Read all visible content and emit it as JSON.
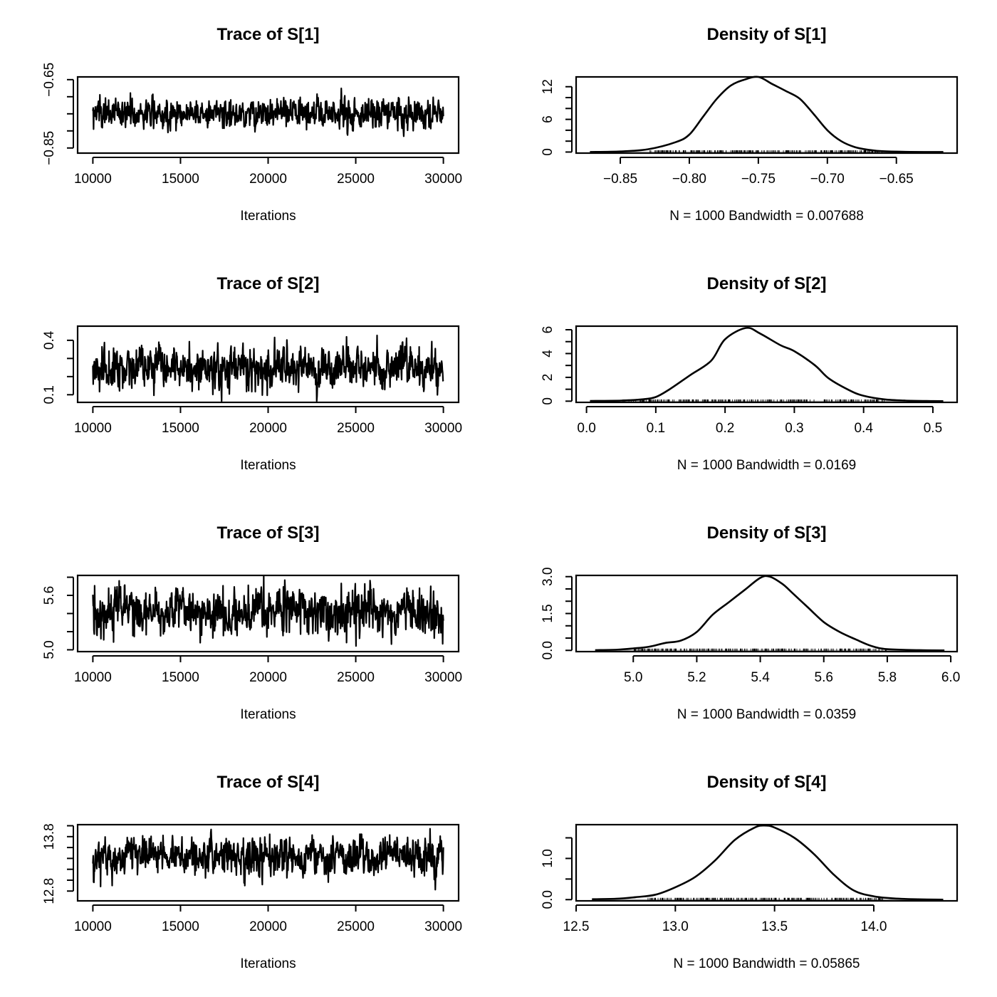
{
  "chart_data": [
    {
      "type": "line",
      "kind": "trace",
      "title": "Trace of S[1]",
      "xlabel": "Iterations",
      "xlim": [
        10000,
        30000
      ],
      "ylim": [
        -0.865,
        -0.642
      ],
      "xticks": [
        10000,
        15000,
        20000,
        25000,
        30000
      ],
      "yticks": [
        -0.85,
        -0.8,
        -0.75,
        -0.7,
        -0.65
      ],
      "ytick_labels": [
        "−0.85",
        "",
        "",
        "",
        "−0.65"
      ],
      "series": [
        {
          "mean": -0.748,
          "sd": 0.022,
          "min": -0.857,
          "max": -0.655,
          "n": 1000
        }
      ]
    },
    {
      "type": "line",
      "kind": "density",
      "title": "Density of S[1]",
      "xlabel": "N = 1000   Bandwidth = 0.007688",
      "xlim": [
        -0.882,
        -0.606
      ],
      "ylim": [
        -0.2,
        13.8
      ],
      "xticks": [
        -0.85,
        -0.8,
        -0.75,
        -0.7,
        -0.65
      ],
      "xtick_labels": [
        "−0.85",
        "−0.80",
        "−0.75",
        "−0.70",
        "−0.65"
      ],
      "yticks": [
        0,
        2,
        4,
        6,
        8,
        10,
        12
      ],
      "ytick_labels": [
        "0",
        "",
        "",
        "6",
        "",
        "",
        "12"
      ],
      "density": {
        "x": [
          -0.872,
          -0.85,
          -0.83,
          -0.81,
          -0.8,
          -0.79,
          -0.78,
          -0.77,
          -0.76,
          -0.75,
          -0.74,
          -0.73,
          -0.72,
          -0.71,
          -0.7,
          -0.69,
          -0.68,
          -0.67,
          -0.66,
          -0.64,
          -0.616
        ],
        "y": [
          0.01,
          0.1,
          0.5,
          1.8,
          3.2,
          6.5,
          9.8,
          12.2,
          13.3,
          13.8,
          12.5,
          11.2,
          9.8,
          7.0,
          4.0,
          2.0,
          0.9,
          0.4,
          0.15,
          0.03,
          0.0
        ]
      },
      "rug_range": [
        -0.83,
        -0.66
      ]
    },
    {
      "type": "line",
      "kind": "trace",
      "title": "Trace of S[2]",
      "xlabel": "Iterations",
      "xlim": [
        10000,
        30000
      ],
      "ylim": [
        0.058,
        0.478
      ],
      "xticks": [
        10000,
        15000,
        20000,
        25000,
        30000
      ],
      "yticks": [
        0.1,
        0.2,
        0.3,
        0.4
      ],
      "ytick_labels": [
        "0.1",
        "",
        "",
        "0.4"
      ],
      "series": [
        {
          "mean": 0.245,
          "sd": 0.06,
          "min": 0.065,
          "max": 0.47,
          "n": 1000
        }
      ]
    },
    {
      "type": "line",
      "kind": "density",
      "title": "Density of S[2]",
      "xlabel": "N = 1000   Bandwidth = 0.0169",
      "xlim": [
        -0.015,
        0.535
      ],
      "ylim": [
        -0.1,
        6.3
      ],
      "xticks": [
        0.0,
        0.1,
        0.2,
        0.3,
        0.4,
        0.5
      ],
      "xtick_labels": [
        "0.0",
        "0.1",
        "0.2",
        "0.3",
        "0.4",
        "0.5"
      ],
      "yticks": [
        0,
        1,
        2,
        3,
        4,
        5,
        6
      ],
      "ytick_labels": [
        "0",
        "",
        "2",
        "",
        "4",
        "",
        "6"
      ],
      "density": {
        "x": [
          0.005,
          0.05,
          0.08,
          0.1,
          0.12,
          0.15,
          0.18,
          0.2,
          0.23,
          0.25,
          0.28,
          0.3,
          0.33,
          0.35,
          0.38,
          0.4,
          0.43,
          0.46,
          0.5,
          0.515
        ],
        "y": [
          0.02,
          0.05,
          0.15,
          0.35,
          1.0,
          2.2,
          3.4,
          5.2,
          6.15,
          5.7,
          4.7,
          4.2,
          3.0,
          1.9,
          0.9,
          0.45,
          0.15,
          0.05,
          0.01,
          0.0
        ]
      },
      "rug_range": [
        0.05,
        0.43
      ]
    },
    {
      "type": "line",
      "kind": "trace",
      "title": "Trace of S[3]",
      "xlabel": "Iterations",
      "xlim": [
        10000,
        30000
      ],
      "ylim": [
        4.98,
        5.82
      ],
      "xticks": [
        10000,
        15000,
        20000,
        25000,
        30000
      ],
      "yticks": [
        5.0,
        5.2,
        5.4,
        5.6,
        5.8
      ],
      "ytick_labels": [
        "5.0",
        "",
        "",
        "5.6",
        ""
      ],
      "series": [
        {
          "mean": 5.42,
          "sd": 0.13,
          "min": 4.99,
          "max": 5.81,
          "n": 1000
        }
      ]
    },
    {
      "type": "line",
      "kind": "density",
      "title": "Density of S[3]",
      "xlabel": "N = 1000   Bandwidth = 0.0359",
      "xlim": [
        4.82,
        6.02
      ],
      "ylim": [
        -0.05,
        3.05
      ],
      "xticks": [
        5.0,
        5.2,
        5.4,
        5.6,
        5.8,
        6.0
      ],
      "xtick_labels": [
        "5.0",
        "5.2",
        "5.4",
        "5.6",
        "5.8",
        "6.0"
      ],
      "yticks": [
        0.0,
        0.5,
        1.0,
        1.5,
        2.0,
        2.5,
        3.0
      ],
      "ytick_labels": [
        "0.0",
        "",
        "",
        "1.5",
        "",
        "",
        "3.0"
      ],
      "density": {
        "x": [
          4.88,
          4.95,
          5.0,
          5.05,
          5.1,
          5.15,
          5.2,
          5.25,
          5.3,
          5.35,
          5.4,
          5.43,
          5.47,
          5.5,
          5.55,
          5.6,
          5.65,
          5.7,
          5.75,
          5.8,
          5.9,
          5.98
        ],
        "y": [
          0.01,
          0.03,
          0.08,
          0.15,
          0.3,
          0.4,
          0.75,
          1.45,
          1.95,
          2.45,
          2.95,
          3.0,
          2.7,
          2.35,
          1.75,
          1.15,
          0.75,
          0.45,
          0.18,
          0.05,
          0.01,
          0.0
        ]
      },
      "rug_range": [
        5.0,
        5.8
      ]
    },
    {
      "type": "line",
      "kind": "trace",
      "title": "Trace of S[4]",
      "xlabel": "Iterations",
      "xlim": [
        10000,
        30000
      ],
      "ylim": [
        12.62,
        14.02
      ],
      "xticks": [
        10000,
        15000,
        20000,
        25000,
        30000
      ],
      "yticks": [
        12.8,
        13.0,
        13.2,
        13.4,
        13.6,
        13.8,
        14.0
      ],
      "ytick_labels": [
        "12.8",
        "",
        "",
        "",
        "",
        "13.8",
        ""
      ],
      "series": [
        {
          "mean": 13.43,
          "sd": 0.18,
          "min": 12.65,
          "max": 14.0,
          "n": 1000
        }
      ]
    },
    {
      "type": "line",
      "kind": "density",
      "title": "Density of S[4]",
      "xlabel": "N = 1000   Bandwidth = 0.05865",
      "xlim": [
        12.5,
        14.42
      ],
      "ylim": [
        -0.03,
        1.82
      ],
      "xticks": [
        12.5,
        13.0,
        13.5,
        14.0
      ],
      "xtick_labels": [
        "12.5",
        "13.0",
        "13.5",
        "14.0"
      ],
      "yticks": [
        0.0,
        0.5,
        1.0,
        1.5
      ],
      "ytick_labels": [
        "0.0",
        "",
        "1.0",
        ""
      ],
      "density": {
        "x": [
          12.58,
          12.7,
          12.8,
          12.9,
          13.0,
          13.1,
          13.2,
          13.3,
          13.4,
          13.45,
          13.5,
          13.6,
          13.7,
          13.8,
          13.9,
          14.0,
          14.1,
          14.2,
          14.35
        ],
        "y": [
          0.01,
          0.02,
          0.06,
          0.12,
          0.3,
          0.55,
          0.95,
          1.45,
          1.75,
          1.8,
          1.75,
          1.5,
          1.1,
          0.6,
          0.22,
          0.08,
          0.03,
          0.01,
          0.0
        ]
      },
      "rug_range": [
        12.85,
        14.05
      ]
    }
  ]
}
